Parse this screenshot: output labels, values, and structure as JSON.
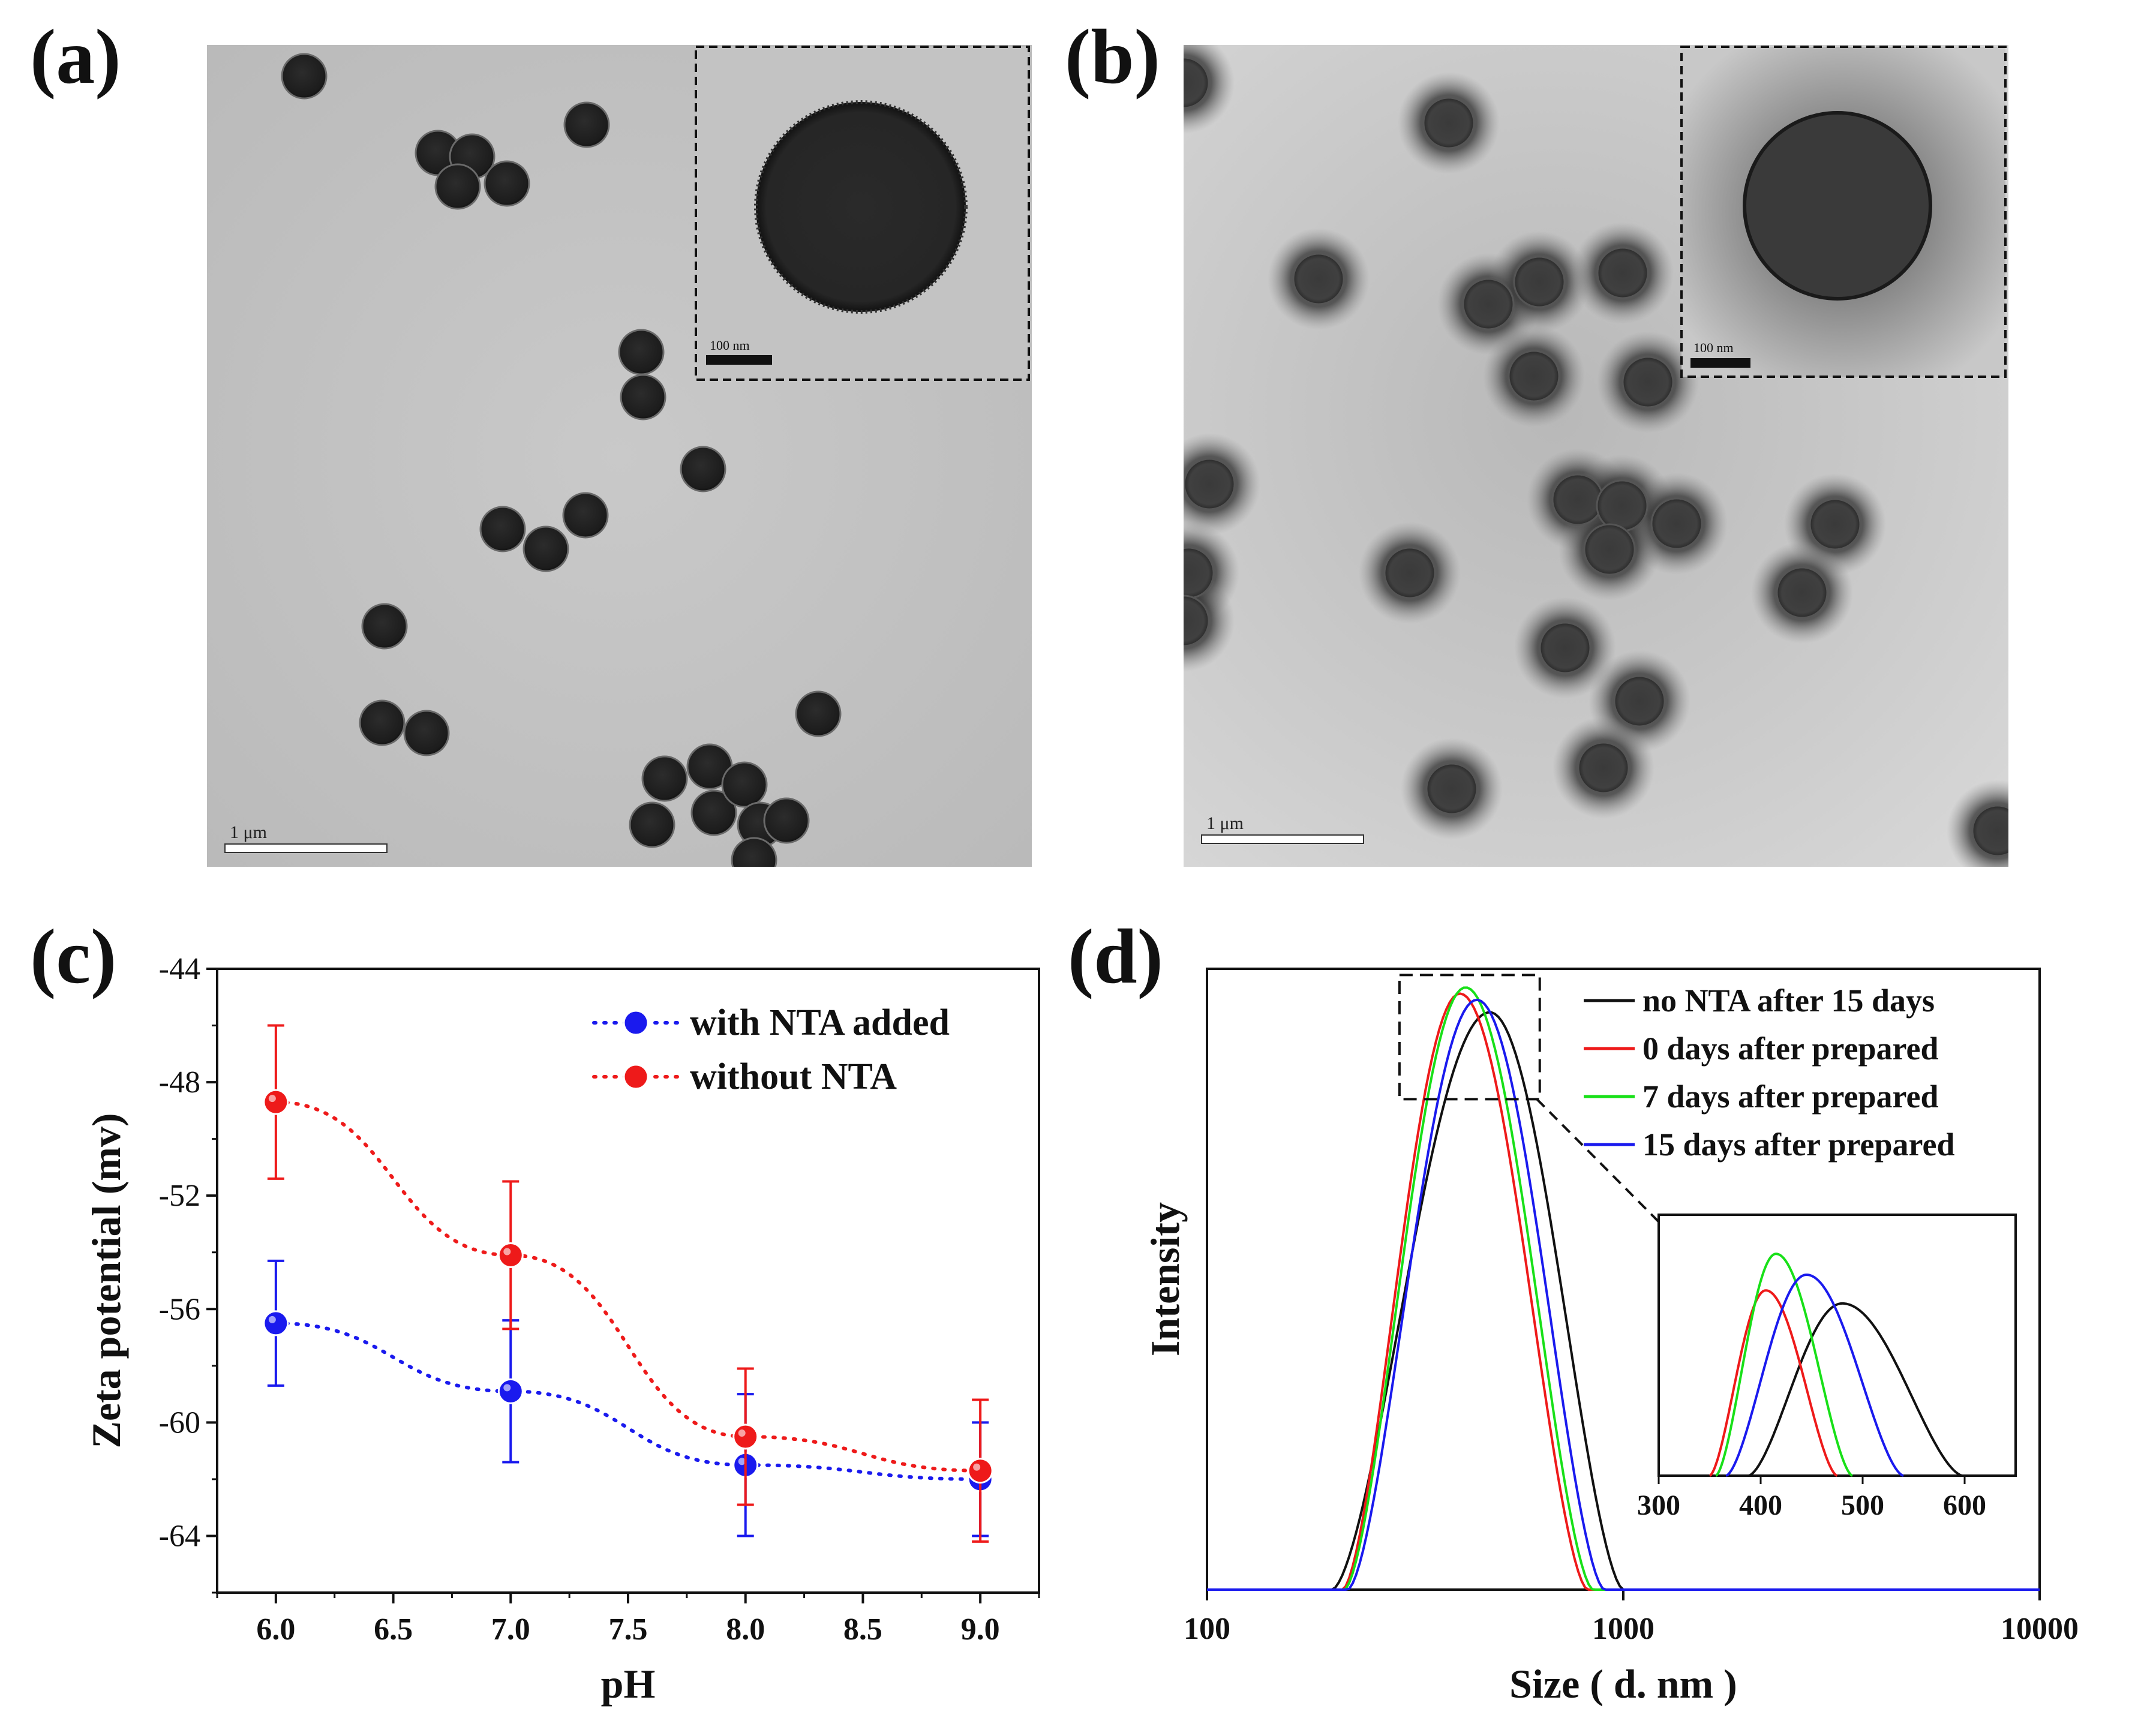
{
  "figure": {
    "labels": {
      "a": "(a)",
      "b": "(b)",
      "c": "(c)",
      "d": "(d)"
    },
    "panel_a": {
      "scale_bar": "1 μm",
      "inset_scale_bar": "100 nm"
    },
    "panel_b": {
      "scale_bar": "1 μm",
      "inset_scale_bar": "100 nm"
    }
  },
  "chart_data": [
    {
      "id": "c",
      "type": "scatter",
      "title": "",
      "xlabel": "pH",
      "ylabel": "Zeta potential (mv)",
      "xlim": [
        5.75,
        9.25
      ],
      "ylim": [
        -66,
        -44
      ],
      "xticks": [
        "6.0",
        "6.5",
        "7.0",
        "7.5",
        "8.0",
        "8.5",
        "9.0"
      ],
      "yticks": [
        "-44",
        "-48",
        "-52",
        "-56",
        "-60",
        "-64"
      ],
      "legend_position": "top-right",
      "series": [
        {
          "name": "with NTA added",
          "color": "#1a1aee",
          "x": [
            6.0,
            7.0,
            8.0,
            9.0
          ],
          "y": [
            -56.5,
            -58.9,
            -61.5,
            -62.0
          ],
          "err": [
            2.2,
            2.5,
            2.5,
            2.0
          ]
        },
        {
          "name": "without NTA",
          "color": "#ee1a1a",
          "x": [
            6.0,
            7.0,
            8.0,
            9.0
          ],
          "y": [
            -48.7,
            -54.1,
            -60.5,
            -61.7
          ],
          "err": [
            2.7,
            2.6,
            2.4,
            2.5
          ]
        }
      ]
    },
    {
      "id": "d",
      "type": "line",
      "title": "",
      "xlabel": "Size ( d. nm )",
      "ylabel": "Intensity",
      "xscale": "log",
      "xlim": [
        100,
        10000
      ],
      "xticks": [
        "100",
        "1000",
        "10000"
      ],
      "legend_position": "top-right",
      "series": [
        {
          "name": "no NTA after 15 days",
          "color": "#111111",
          "peak": 478,
          "lo": 200,
          "hi": 1000,
          "height": 0.93
        },
        {
          "name": "0 days after prepared",
          "color": "#ee1a1a",
          "peak": 405,
          "lo": 212,
          "hi": 820,
          "height": 0.96
        },
        {
          "name": "7 days after prepared",
          "color": "#18e018",
          "peak": 418,
          "lo": 214,
          "hi": 845,
          "height": 0.97
        },
        {
          "name": "15 days after prepared",
          "color": "#1a1aee",
          "peak": 445,
          "lo": 218,
          "hi": 900,
          "height": 0.95
        }
      ],
      "inset": {
        "xlim": [
          300,
          650
        ],
        "xticks": [
          "300",
          "400",
          "500",
          "600"
        ],
        "curves": [
          {
            "color": "#111111",
            "peak": 480,
            "lo": 388,
            "hi": 598,
            "height": 0.66
          },
          {
            "color": "#ee1a1a",
            "peak": 405,
            "lo": 350,
            "hi": 475,
            "height": 0.71
          },
          {
            "color": "#18e018",
            "peak": 415,
            "lo": 356,
            "hi": 490,
            "height": 0.85
          },
          {
            "color": "#1a1aee",
            "peak": 445,
            "lo": 366,
            "hi": 540,
            "height": 0.77
          }
        ]
      }
    }
  ]
}
